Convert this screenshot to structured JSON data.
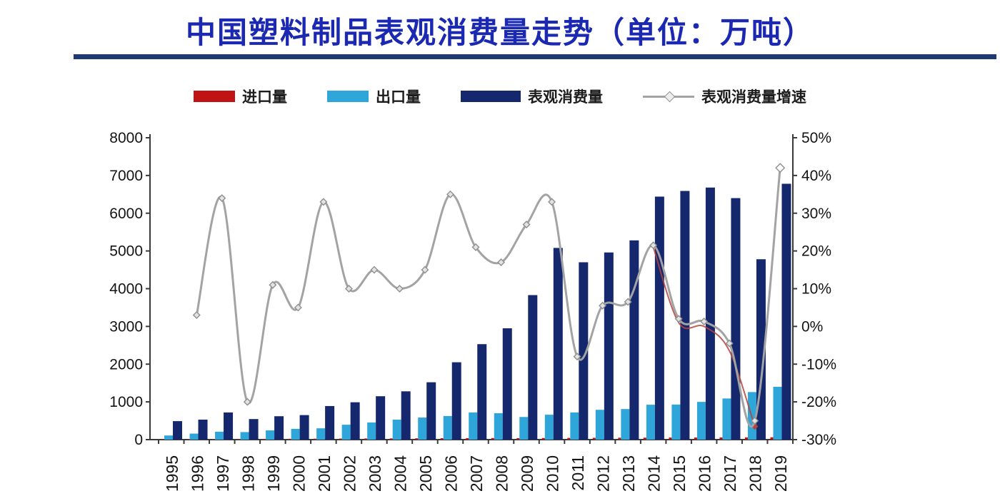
{
  "title": "中国塑料制品表观消费量走势（单位：万吨）",
  "legend": [
    {
      "id": "imports",
      "label": "进口量",
      "swatch": "bar",
      "color": "#c01414"
    },
    {
      "id": "exports",
      "label": "出口量",
      "swatch": "bar",
      "color": "#2fa6da"
    },
    {
      "id": "consumption",
      "label": "表观消费量",
      "swatch": "bar",
      "color": "#15276d"
    },
    {
      "id": "growth",
      "label": "表观消费量增速",
      "swatch": "line",
      "color": "#a3a3a3"
    }
  ],
  "chart_data": {
    "type": "bar+line",
    "title": "中国塑料制品表观消费量走势（单位：万吨）",
    "categories": [
      "1995",
      "1996",
      "1997",
      "1998",
      "1999",
      "2000",
      "2001",
      "2002",
      "2003",
      "2004",
      "2005",
      "2006",
      "2007",
      "2008",
      "2009",
      "2010",
      "2011",
      "2012",
      "2013",
      "2014",
      "2015",
      "2016",
      "2017",
      "2018",
      "2019"
    ],
    "left_axis": {
      "min": 0,
      "max": 8000,
      "step": 1000,
      "ticks": [
        "8000",
        "7000",
        "6000",
        "5000",
        "4000",
        "3000",
        "2000",
        "1000",
        "0"
      ]
    },
    "right_axis": {
      "min": -30,
      "max": 50,
      "step": 10,
      "ticks": [
        "50%",
        "40%",
        "30%",
        "20%",
        "10%",
        "0%",
        "-10%",
        "-20%",
        "-30%"
      ]
    },
    "grid": "off",
    "legend_position": "top",
    "series": [
      {
        "id": "imports",
        "name": "进口量",
        "kind": "bar",
        "axis": "left",
        "color": "#c01414",
        "values": [
          12,
          14,
          16,
          18,
          20,
          22,
          25,
          28,
          30,
          32,
          35,
          38,
          40,
          42,
          40,
          42,
          45,
          48,
          50,
          52,
          55,
          55,
          58,
          60,
          62
        ]
      },
      {
        "id": "exports",
        "name": "出口量",
        "kind": "bar",
        "axis": "left",
        "color": "#2fa6da",
        "values": [
          110,
          160,
          210,
          200,
          245,
          285,
          300,
          395,
          455,
          530,
          585,
          625,
          720,
          700,
          600,
          660,
          720,
          790,
          810,
          925,
          930,
          1000,
          1090,
          1260,
          1400
        ]
      },
      {
        "id": "consumption",
        "name": "表观消费量",
        "kind": "bar",
        "axis": "left",
        "color": "#15276d",
        "values": [
          490,
          530,
          720,
          545,
          620,
          650,
          890,
          990,
          1150,
          1280,
          1520,
          2050,
          2530,
          2950,
          3830,
          5080,
          4700,
          4960,
          5280,
          6440,
          6590,
          6680,
          6400,
          4780,
          6780
        ]
      },
      {
        "id": "growth-shadow",
        "name": "表观消费量增速(红色伴影线)",
        "kind": "line",
        "axis": "right",
        "color": "#b5443c",
        "width": 2,
        "markers": false,
        "end_marker": true,
        "values": [
          null,
          null,
          null,
          null,
          null,
          null,
          null,
          null,
          null,
          null,
          null,
          null,
          null,
          null,
          null,
          null,
          null,
          null,
          null,
          21,
          1,
          0,
          -6.5,
          -26.5,
          null
        ]
      },
      {
        "id": "growth",
        "name": "表观消费量增速",
        "kind": "line",
        "axis": "right",
        "color": "#a3a3a3",
        "width": 3,
        "markers": true,
        "big_end": true,
        "values": [
          null,
          3,
          34,
          -20,
          11,
          5,
          33,
          10,
          15,
          10,
          15,
          35,
          21,
          17,
          27,
          33,
          -8,
          5.5,
          6.5,
          21.5,
          2,
          1.3,
          -4.5,
          -25,
          42
        ]
      }
    ]
  }
}
